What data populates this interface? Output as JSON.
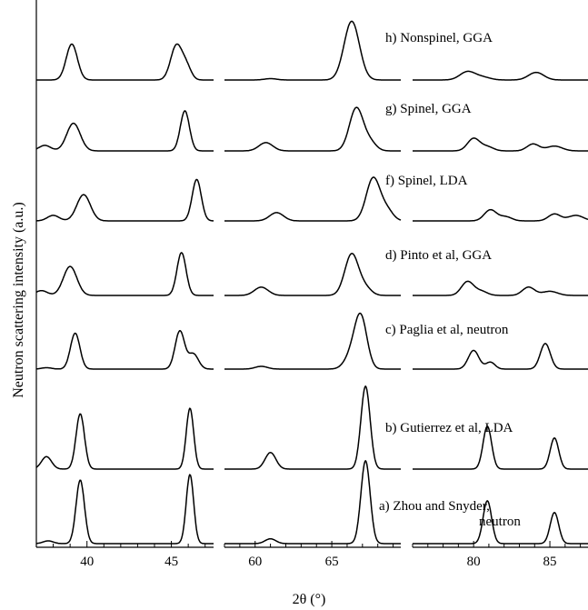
{
  "chart_data": {
    "type": "line",
    "title": "",
    "xlabel": "2θ (°)",
    "ylabel": "Neutron scattering intensity (a.u.)",
    "panels": [
      {
        "xlim": [
          37,
          47.5
        ],
        "ticks": [
          40,
          45
        ]
      },
      {
        "xlim": [
          58,
          69.5
        ],
        "ticks": [
          60,
          65
        ]
      },
      {
        "xlim": [
          76,
          87.5
        ],
        "ticks": [
          80,
          85
        ]
      }
    ],
    "grid": false,
    "legend": "none",
    "series": [
      {
        "name": "h) Nonspinel, GGA",
        "peaks": [
          [
            39.1,
            0.52,
            0.33
          ],
          [
            45.3,
            0.5,
            0.34
          ],
          [
            45.9,
            0.18,
            0.28
          ],
          [
            61.0,
            0.02,
            0.4
          ],
          [
            66.3,
            0.85,
            0.5
          ],
          [
            79.6,
            0.12,
            0.5
          ],
          [
            80.6,
            0.04,
            0.5
          ],
          [
            84.1,
            0.11,
            0.5
          ]
        ]
      },
      {
        "name": "g) Spinel, GGA",
        "peaks": [
          [
            37.5,
            0.08,
            0.35
          ],
          [
            39.2,
            0.4,
            0.4
          ],
          [
            45.8,
            0.58,
            0.27
          ],
          [
            60.7,
            0.12,
            0.45
          ],
          [
            66.6,
            0.62,
            0.45
          ],
          [
            67.5,
            0.12,
            0.4
          ],
          [
            80.0,
            0.18,
            0.4
          ],
          [
            80.9,
            0.06,
            0.4
          ],
          [
            83.9,
            0.1,
            0.4
          ],
          [
            85.3,
            0.07,
            0.5
          ]
        ]
      },
      {
        "name": "f) Spinel, LDA",
        "peaks": [
          [
            38.0,
            0.08,
            0.35
          ],
          [
            39.8,
            0.38,
            0.4
          ],
          [
            46.5,
            0.6,
            0.27
          ],
          [
            61.4,
            0.12,
            0.45
          ],
          [
            67.7,
            0.62,
            0.45
          ],
          [
            68.6,
            0.15,
            0.4
          ],
          [
            81.1,
            0.16,
            0.4
          ],
          [
            82.1,
            0.06,
            0.4
          ],
          [
            85.3,
            0.1,
            0.4
          ],
          [
            86.7,
            0.08,
            0.5
          ]
        ]
      },
      {
        "name": "d) Pinto et al, GGA",
        "peaks": [
          [
            37.3,
            0.07,
            0.35
          ],
          [
            39.0,
            0.42,
            0.4
          ],
          [
            45.6,
            0.62,
            0.27
          ],
          [
            60.4,
            0.12,
            0.45
          ],
          [
            66.3,
            0.6,
            0.45
          ],
          [
            67.2,
            0.1,
            0.4
          ],
          [
            79.6,
            0.2,
            0.4
          ],
          [
            80.5,
            0.06,
            0.4
          ],
          [
            83.6,
            0.12,
            0.4
          ],
          [
            85.0,
            0.06,
            0.5
          ]
        ]
      },
      {
        "name": "c) Paglia et al, neutron",
        "peaks": [
          [
            37.6,
            0.02,
            0.3
          ],
          [
            39.3,
            0.52,
            0.28
          ],
          [
            45.5,
            0.55,
            0.28
          ],
          [
            46.3,
            0.22,
            0.3
          ],
          [
            60.4,
            0.04,
            0.4
          ],
          [
            66.3,
            0.2,
            0.45
          ],
          [
            66.9,
            0.72,
            0.4
          ],
          [
            80.0,
            0.27,
            0.35
          ],
          [
            81.1,
            0.1,
            0.3
          ],
          [
            84.7,
            0.37,
            0.33
          ]
        ]
      },
      {
        "name": "b) Gutierrez et al, LDA",
        "peaks": [
          [
            37.6,
            0.18,
            0.3
          ],
          [
            39.6,
            0.8,
            0.25
          ],
          [
            46.1,
            0.88,
            0.22
          ],
          [
            61.0,
            0.24,
            0.35
          ],
          [
            67.2,
            1.2,
            0.3
          ],
          [
            80.9,
            0.62,
            0.28
          ],
          [
            85.3,
            0.45,
            0.28
          ]
        ]
      },
      {
        "name": "a) Zhou and Snyder, neutron",
        "peaks": [
          [
            37.7,
            0.04,
            0.3
          ],
          [
            39.6,
            0.92,
            0.25
          ],
          [
            46.1,
            1.0,
            0.22
          ],
          [
            61.0,
            0.07,
            0.35
          ],
          [
            67.2,
            1.2,
            0.3
          ],
          [
            80.9,
            0.62,
            0.28
          ],
          [
            85.3,
            0.45,
            0.28
          ]
        ]
      }
    ]
  }
}
